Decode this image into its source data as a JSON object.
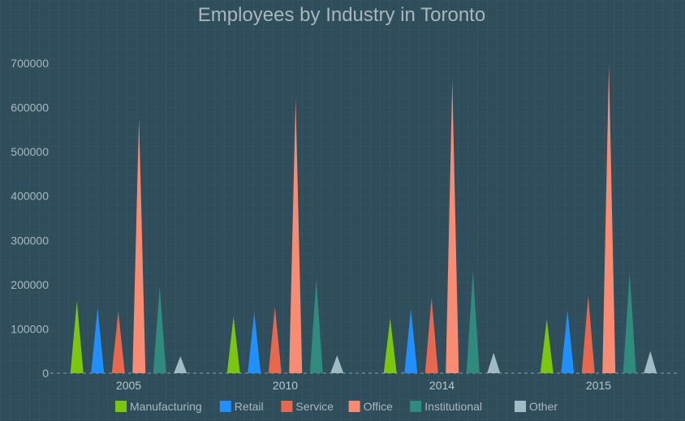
{
  "chart_data": {
    "type": "bar",
    "title": "Employees by Industry in Toronto",
    "xlabel": "",
    "ylabel": "",
    "categories": [
      "2005",
      "2010",
      "2014",
      "2015"
    ],
    "ylim": [
      0,
      700000
    ],
    "yticks": [
      "0",
      "100000",
      "200000",
      "300000",
      "400000",
      "500000",
      "600000",
      "700000"
    ],
    "legend_position": "bottom",
    "grid": false,
    "series": [
      {
        "name": "Manufacturing",
        "color": "#7ac70c",
        "values": [
          163000,
          128000,
          124000,
          122000
        ]
      },
      {
        "name": "Retail",
        "color": "#1e90ff",
        "values": [
          148000,
          138000,
          145000,
          142000
        ]
      },
      {
        "name": "Service",
        "color": "#e8674d",
        "values": [
          140000,
          150000,
          170000,
          175000
        ]
      },
      {
        "name": "Office",
        "color": "#f98b72",
        "values": [
          575000,
          620000,
          662000,
          695000
        ]
      },
      {
        "name": "Institutional",
        "color": "#2f8b7e",
        "values": [
          195000,
          212000,
          232000,
          228000
        ]
      },
      {
        "name": "Other",
        "color": "#9fbcc4",
        "values": [
          38000,
          40000,
          46000,
          50000
        ]
      }
    ]
  }
}
